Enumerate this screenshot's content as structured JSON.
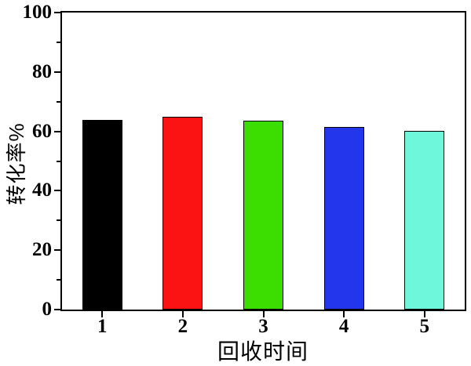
{
  "figure": {
    "background": "#ffffff",
    "axis_color": "#000000",
    "tick_label_color": "#000000"
  },
  "chart_data": {
    "type": "bar",
    "title": "",
    "categories": [
      "1",
      "2",
      "3",
      "4",
      "5"
    ],
    "values": [
      63.8,
      64.9,
      63.6,
      61.6,
      60.1
    ],
    "bar_colors": [
      "#000000",
      "#fb1212",
      "#3cdd00",
      "#2336ec",
      "#6ef7da"
    ],
    "bar_outline_color": "#000000",
    "xlabel": "回收时间",
    "ylabel": "转化率%",
    "ylim": [
      0,
      100
    ],
    "y_major_ticks": [
      0,
      20,
      40,
      60,
      80,
      100
    ],
    "y_minor_ticks": [
      10,
      30,
      50,
      70,
      90
    ],
    "grid": false,
    "legend": "none",
    "frame": "box",
    "bar_width_fraction": 0.5
  }
}
